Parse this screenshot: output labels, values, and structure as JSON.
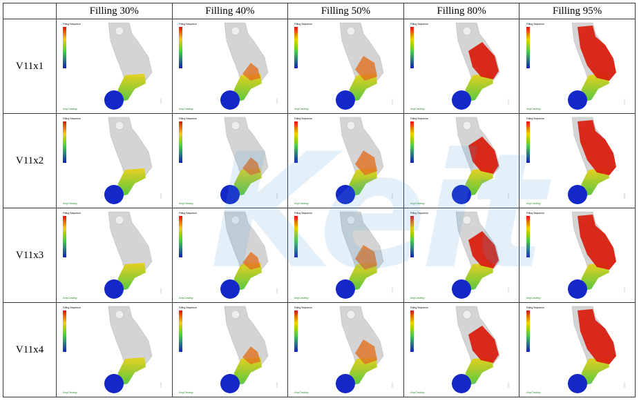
{
  "header": {
    "corner": "",
    "columns": [
      "Filling 30%",
      "Filling 40%",
      "Filling 50%",
      "Filling 80%",
      "Filling 95%"
    ]
  },
  "rows": [
    {
      "label": "V11x1"
    },
    {
      "label": "V11x2"
    },
    {
      "label": "V11x3"
    },
    {
      "label": "V11x4"
    }
  ],
  "cell_texts": {
    "legend_title": "Filling Sequence",
    "brand": "AnyCasting"
  },
  "watermark": "Keit"
}
